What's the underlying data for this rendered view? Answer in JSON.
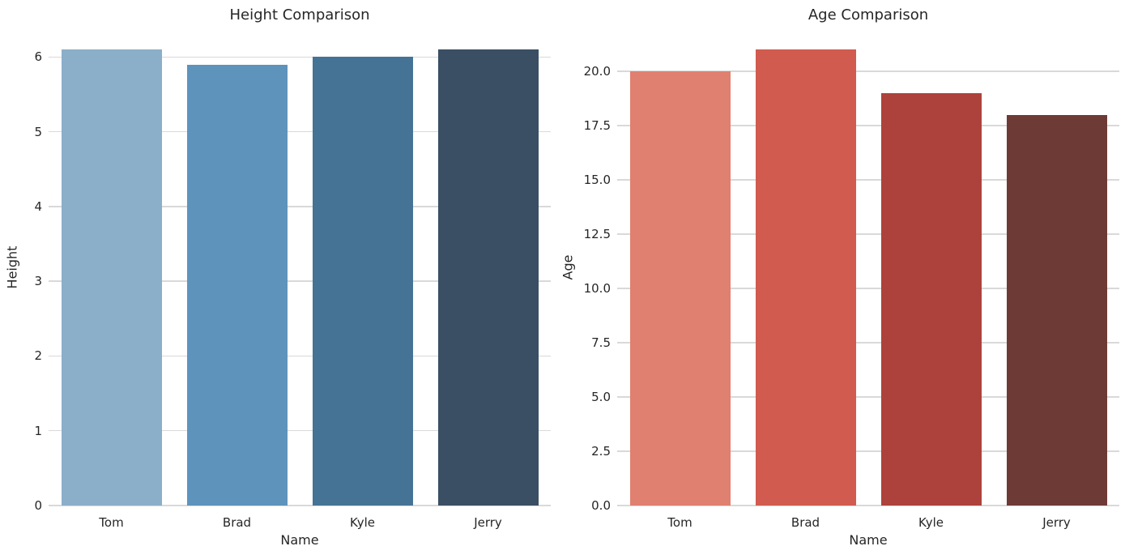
{
  "figure": {
    "background_color": "#ffffff",
    "grid_color": "#d9d9d9",
    "text_color": "#262626"
  },
  "chart_data": [
    {
      "type": "bar",
      "title": "Height Comparison",
      "xlabel": "Name",
      "ylabel": "Height",
      "categories": [
        "Tom",
        "Brad",
        "Kyle",
        "Jerry"
      ],
      "values": [
        6.1,
        5.9,
        6.0,
        6.1
      ],
      "bar_colors": [
        "#8BAEC9",
        "#5E93BC",
        "#447396",
        "#3A4F63"
      ],
      "yticks": [
        0,
        1,
        2,
        3,
        4,
        5,
        6
      ],
      "ytick_labels": [
        "0",
        "1",
        "2",
        "3",
        "4",
        "5",
        "6"
      ],
      "ylim": [
        0,
        6.405
      ],
      "grid": true,
      "legend": null
    },
    {
      "type": "bar",
      "title": "Age Comparison",
      "xlabel": "Name",
      "ylabel": "Age",
      "categories": [
        "Tom",
        "Brad",
        "Kyle",
        "Jerry"
      ],
      "values": [
        20,
        21,
        19,
        18
      ],
      "bar_colors": [
        "#E08070",
        "#D15B4E",
        "#AD423C",
        "#6E3A36"
      ],
      "yticks": [
        0,
        2.5,
        5,
        7.5,
        10,
        12.5,
        15,
        17.5,
        20
      ],
      "ytick_labels": [
        "0.0",
        "2.5",
        "5.0",
        "7.5",
        "10.0",
        "12.5",
        "15.0",
        "17.5",
        "20.0"
      ],
      "ylim": [
        0,
        22.05
      ],
      "grid": true,
      "legend": null
    }
  ]
}
